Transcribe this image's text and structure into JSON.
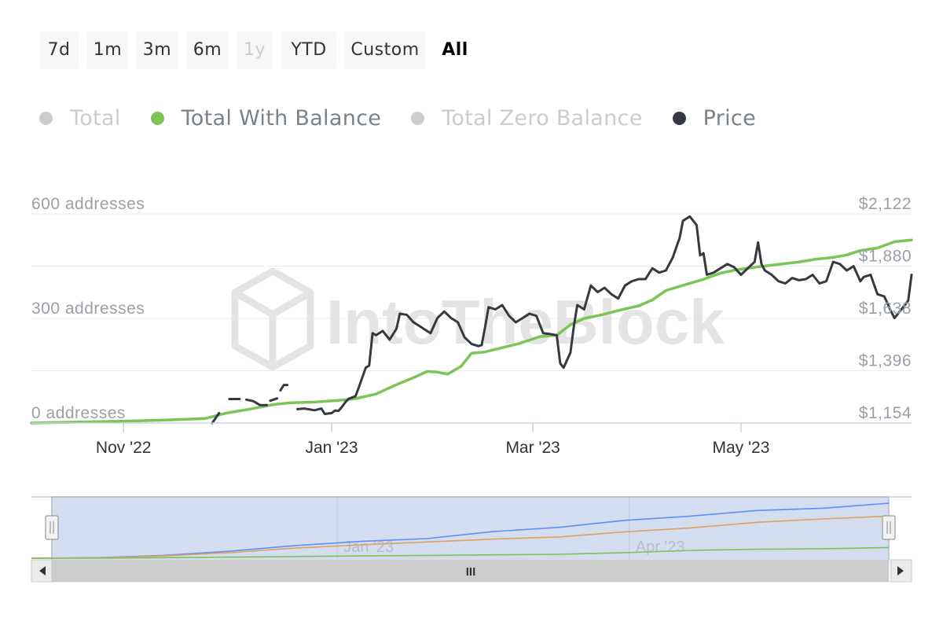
{
  "range_selector": {
    "buttons": [
      {
        "label": "7d",
        "state": "normal"
      },
      {
        "label": "1m",
        "state": "normal"
      },
      {
        "label": "3m",
        "state": "normal"
      },
      {
        "label": "6m",
        "state": "normal"
      },
      {
        "label": "1y",
        "state": "disabled"
      },
      {
        "label": "YTD",
        "state": "normal"
      },
      {
        "label": "Custom",
        "state": "normal"
      },
      {
        "label": "All",
        "state": "selected"
      }
    ]
  },
  "legend": [
    {
      "label": "Total",
      "color": "#cccccc",
      "visible": false
    },
    {
      "label": "Total With Balance",
      "color": "#7cc455",
      "visible": true
    },
    {
      "label": "Total Zero Balance",
      "color": "#cccccc",
      "visible": false
    },
    {
      "label": "Price",
      "color": "#343a40",
      "visible": true
    }
  ],
  "watermark": "IntoTheBlock",
  "chart_data": {
    "type": "line",
    "x_axis": {
      "type": "date",
      "range": [
        "2022-10-05",
        "2023-06-20"
      ],
      "ticks": [
        {
          "date": "2022-11-01",
          "label": "Nov '22"
        },
        {
          "date": "2023-01-01",
          "label": "Jan '23"
        },
        {
          "date": "2023-03-01",
          "label": "Mar '23"
        },
        {
          "date": "2023-05-01",
          "label": "May '23"
        }
      ]
    },
    "y_axis_left": {
      "range": [
        0,
        600
      ],
      "ticks": [
        {
          "value": 0,
          "label": "0 addresses"
        },
        {
          "value": 300,
          "label": "300 addresses"
        },
        {
          "value": 600,
          "label": "600 addresses"
        }
      ]
    },
    "y_axis_right": {
      "range": [
        1154,
        2122
      ],
      "ticks": [
        {
          "value": 1154,
          "label": "$1,154"
        },
        {
          "value": 1396,
          "label": "$1,396"
        },
        {
          "value": 1638,
          "label": "$1,638"
        },
        {
          "value": 1880,
          "label": "$1,880"
        },
        {
          "value": 2122,
          "label": "$2,122"
        }
      ]
    },
    "grid": true,
    "series": [
      {
        "name": "Total With Balance",
        "axis": "left",
        "color": "#7cc455",
        "points": [
          [
            "2022-10-05",
            0
          ],
          [
            "2022-10-15",
            2
          ],
          [
            "2022-10-25",
            4
          ],
          [
            "2022-11-05",
            6
          ],
          [
            "2022-11-15",
            9
          ],
          [
            "2022-11-25",
            13
          ],
          [
            "2022-12-01",
            28
          ],
          [
            "2022-12-08",
            40
          ],
          [
            "2022-12-15",
            53
          ],
          [
            "2022-12-20",
            58
          ],
          [
            "2022-12-27",
            60
          ],
          [
            "2023-01-03",
            65
          ],
          [
            "2023-01-08",
            70
          ],
          [
            "2023-01-14",
            83
          ],
          [
            "2023-01-20",
            110
          ],
          [
            "2023-01-25",
            130
          ],
          [
            "2023-01-29",
            148
          ],
          [
            "2023-02-01",
            146
          ],
          [
            "2023-02-04",
            140
          ],
          [
            "2023-02-08",
            163
          ],
          [
            "2023-02-11",
            200
          ],
          [
            "2023-02-15",
            204
          ],
          [
            "2023-02-20",
            216
          ],
          [
            "2023-02-25",
            228
          ],
          [
            "2023-03-03",
            248
          ],
          [
            "2023-03-08",
            252
          ],
          [
            "2023-03-12",
            282
          ],
          [
            "2023-03-16",
            300
          ],
          [
            "2023-03-21",
            310
          ],
          [
            "2023-03-27",
            325
          ],
          [
            "2023-04-01",
            336
          ],
          [
            "2023-04-05",
            353
          ],
          [
            "2023-04-09",
            380
          ],
          [
            "2023-04-14",
            395
          ],
          [
            "2023-04-20",
            412
          ],
          [
            "2023-04-25",
            430
          ],
          [
            "2023-04-30",
            440
          ],
          [
            "2023-05-06",
            448
          ],
          [
            "2023-05-12",
            455
          ],
          [
            "2023-05-18",
            462
          ],
          [
            "2023-05-23",
            470
          ],
          [
            "2023-05-28",
            475
          ],
          [
            "2023-06-01",
            482
          ],
          [
            "2023-06-05",
            495
          ],
          [
            "2023-06-10",
            502
          ],
          [
            "2023-06-15",
            520
          ],
          [
            "2023-06-20",
            525
          ]
        ]
      },
      {
        "name": "Price",
        "axis": "right",
        "color": "#343a40",
        "segments": [
          [
            [
              "2022-11-27",
              1154
            ],
            [
              "2022-11-29",
              1200
            ]
          ],
          [
            [
              "2022-12-02",
              1265
            ],
            [
              "2022-12-05",
              1265
            ]
          ],
          [
            [
              "2022-12-07",
              1262
            ],
            [
              "2022-12-09",
              1255
            ],
            [
              "2022-12-11",
              1237
            ],
            [
              "2022-12-13",
              1237
            ]
          ],
          [
            [
              "2022-12-14",
              1257
            ],
            [
              "2022-12-16",
              1268
            ]
          ],
          [
            [
              "2022-12-17",
              1305
            ],
            [
              "2022-12-18",
              1330
            ],
            [
              "2022-12-19",
              1330
            ]
          ],
          [
            [
              "2022-12-22",
              1218
            ],
            [
              "2022-12-24",
              1221
            ],
            [
              "2022-12-27",
              1213
            ],
            [
              "2022-12-29",
              1221
            ],
            [
              "2022-12-30",
              1196
            ],
            [
              "2023-01-01",
              1200
            ],
            [
              "2023-01-02",
              1212
            ],
            [
              "2023-01-03",
              1210
            ],
            [
              "2023-01-04",
              1228
            ],
            [
              "2023-01-05",
              1250
            ],
            [
              "2023-01-06",
              1266
            ],
            [
              "2023-01-08",
              1278
            ],
            [
              "2023-01-09",
              1320
            ],
            [
              "2023-01-11",
              1410
            ],
            [
              "2023-01-12",
              1420
            ],
            [
              "2023-01-13",
              1570
            ],
            [
              "2023-01-14",
              1560
            ],
            [
              "2023-01-16",
              1580
            ],
            [
              "2023-01-18",
              1540
            ],
            [
              "2023-01-20",
              1590
            ],
            [
              "2023-01-21",
              1660
            ],
            [
              "2023-01-23",
              1655
            ],
            [
              "2023-01-25",
              1620
            ],
            [
              "2023-01-27",
              1600
            ],
            [
              "2023-01-28",
              1590
            ],
            [
              "2023-01-30",
              1570
            ],
            [
              "2023-02-01",
              1640
            ],
            [
              "2023-02-03",
              1670
            ],
            [
              "2023-02-05",
              1640
            ],
            [
              "2023-02-07",
              1620
            ],
            [
              "2023-02-09",
              1550
            ],
            [
              "2023-02-11",
              1520
            ],
            [
              "2023-02-13",
              1510
            ],
            [
              "2023-02-14",
              1515
            ],
            [
              "2023-02-15",
              1600
            ],
            [
              "2023-02-16",
              1690
            ],
            [
              "2023-02-18",
              1680
            ],
            [
              "2023-02-20",
              1700
            ],
            [
              "2023-02-22",
              1650
            ],
            [
              "2023-02-24",
              1620
            ],
            [
              "2023-02-26",
              1640
            ],
            [
              "2023-02-28",
              1660
            ],
            [
              "2023-03-02",
              1650
            ],
            [
              "2023-03-04",
              1570
            ],
            [
              "2023-03-06",
              1566
            ],
            [
              "2023-03-08",
              1560
            ],
            [
              "2023-03-09",
              1430
            ],
            [
              "2023-03-10",
              1410
            ],
            [
              "2023-03-12",
              1480
            ],
            [
              "2023-03-13",
              1600
            ],
            [
              "2023-03-14",
              1700
            ],
            [
              "2023-03-16",
              1680
            ],
            [
              "2023-03-18",
              1790
            ],
            [
              "2023-03-20",
              1760
            ],
            [
              "2023-03-22",
              1780
            ],
            [
              "2023-03-24",
              1750
            ],
            [
              "2023-03-26",
              1730
            ],
            [
              "2023-03-28",
              1790
            ],
            [
              "2023-03-30",
              1810
            ],
            [
              "2023-04-01",
              1820
            ],
            [
              "2023-04-03",
              1820
            ],
            [
              "2023-04-05",
              1870
            ],
            [
              "2023-04-07",
              1850
            ],
            [
              "2023-04-09",
              1860
            ],
            [
              "2023-04-11",
              1920
            ],
            [
              "2023-04-13",
              2010
            ],
            [
              "2023-04-14",
              2090
            ],
            [
              "2023-04-16",
              2110
            ],
            [
              "2023-04-18",
              2070
            ],
            [
              "2023-04-19",
              1930
            ],
            [
              "2023-04-20",
              1940
            ],
            [
              "2023-04-21",
              1840
            ],
            [
              "2023-04-23",
              1850
            ],
            [
              "2023-04-25",
              1870
            ],
            [
              "2023-04-27",
              1890
            ],
            [
              "2023-04-29",
              1875
            ],
            [
              "2023-05-01",
              1840
            ],
            [
              "2023-05-03",
              1870
            ],
            [
              "2023-05-05",
              1900
            ],
            [
              "2023-05-06",
              1990
            ],
            [
              "2023-05-07",
              1890
            ],
            [
              "2023-05-08",
              1860
            ],
            [
              "2023-05-10",
              1840
            ],
            [
              "2023-05-12",
              1810
            ],
            [
              "2023-05-14",
              1800
            ],
            [
              "2023-05-16",
              1825
            ],
            [
              "2023-05-18",
              1815
            ],
            [
              "2023-05-20",
              1820
            ],
            [
              "2023-05-22",
              1840
            ],
            [
              "2023-05-24",
              1800
            ],
            [
              "2023-05-26",
              1810
            ],
            [
              "2023-05-28",
              1900
            ],
            [
              "2023-05-30",
              1890
            ],
            [
              "2023-06-01",
              1860
            ],
            [
              "2023-06-03",
              1880
            ],
            [
              "2023-06-05",
              1810
            ],
            [
              "2023-06-06",
              1830
            ],
            [
              "2023-06-08",
              1840
            ],
            [
              "2023-06-10",
              1750
            ],
            [
              "2023-06-12",
              1740
            ],
            [
              "2023-06-14",
              1670
            ],
            [
              "2023-06-15",
              1640
            ],
            [
              "2023-06-17",
              1680
            ],
            [
              "2023-06-19",
              1720
            ],
            [
              "2023-06-20",
              1840
            ]
          ]
        ]
      }
    ],
    "navigator": {
      "labels": [
        {
          "date": "2023-01-01",
          "label": "Jan '23"
        },
        {
          "date": "2023-04-01",
          "label": "Apr '23"
        }
      ],
      "series": [
        {
          "name": "Total",
          "color": "#5b8ff9",
          "values": [
            0,
            2,
            10,
            25,
            45,
            60,
            70,
            95,
            110,
            135,
            150,
            170,
            178,
            196
          ]
        },
        {
          "name": "Total Zero Balance",
          "color": "#e0a060",
          "values": [
            0,
            1,
            8,
            20,
            36,
            48,
            58,
            68,
            76,
            94,
            108,
            128,
            140,
            150
          ]
        },
        {
          "name": "Total With Balance",
          "color": "#7cc455",
          "values": [
            0,
            0,
            2,
            4,
            6,
            8,
            10,
            12,
            14,
            20,
            28,
            32,
            34,
            38
          ]
        }
      ],
      "scrollbar_handle": "III"
    }
  }
}
